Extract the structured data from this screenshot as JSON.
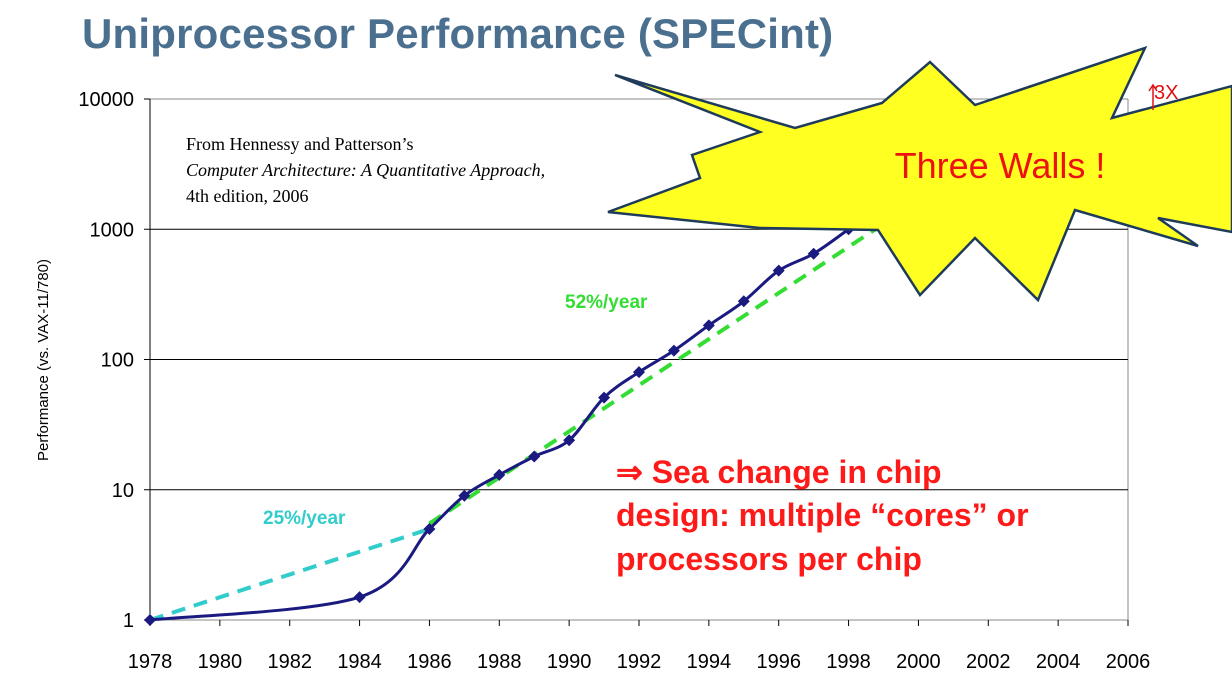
{
  "title": "Uniprocessor Performance (SPECint)",
  "source_note": {
    "line1": "From Hennessy and Patterson’s",
    "line2": "Computer Architecture: A Quantitative Approach,",
    "line3": "4th edition, 2006"
  },
  "callout": {
    "text": "Three Walls !",
    "fill": "#ffff22",
    "multiplier_text": "3X"
  },
  "sea_change": {
    "line1": "⇒ Sea change in chip",
    "line2": "design: multiple “cores” or",
    "line3": "processors per chip"
  },
  "colors": {
    "title": "#4a6f8f",
    "data_line": "#1a1a80",
    "trend_52": "#33dd33",
    "trend_25": "#33cccc",
    "annotation_red": "#ff1a1a"
  },
  "chart_data": {
    "type": "line",
    "title": "Uniprocessor Performance (SPECint)",
    "xlabel": "",
    "ylabel": "Performance (vs. VAX-11/780)",
    "yscale": "log",
    "ylim": [
      1,
      10000
    ],
    "xlim": [
      1978,
      2006
    ],
    "y_ticks": [
      "10000",
      "1000",
      "100",
      "10",
      "1"
    ],
    "x_ticks": [
      "1978",
      "1980",
      "1982",
      "1984",
      "1986",
      "1988",
      "1990",
      "1992",
      "1994",
      "1996",
      "1998",
      "2000",
      "2002",
      "2004",
      "2006"
    ],
    "series": [
      {
        "x": [
          1978,
          1984,
          1986,
          1987,
          1988,
          1989,
          1990,
          1991,
          1992,
          1993,
          1994,
          1995,
          1996,
          1997,
          1998
        ],
        "y": [
          1,
          1.5,
          5,
          9,
          13,
          18,
          24,
          51,
          80,
          117,
          183,
          280,
          481,
          649,
          1000
        ]
      }
    ],
    "trend_lines": [
      {
        "label": "25%/year",
        "x": [
          1978,
          1986
        ],
        "y": [
          1,
          5
        ]
      },
      {
        "label": "52%/year",
        "x": [
          1986,
          1999
        ],
        "y": [
          5.5,
          1100
        ]
      }
    ],
    "grid": "horizontal"
  }
}
